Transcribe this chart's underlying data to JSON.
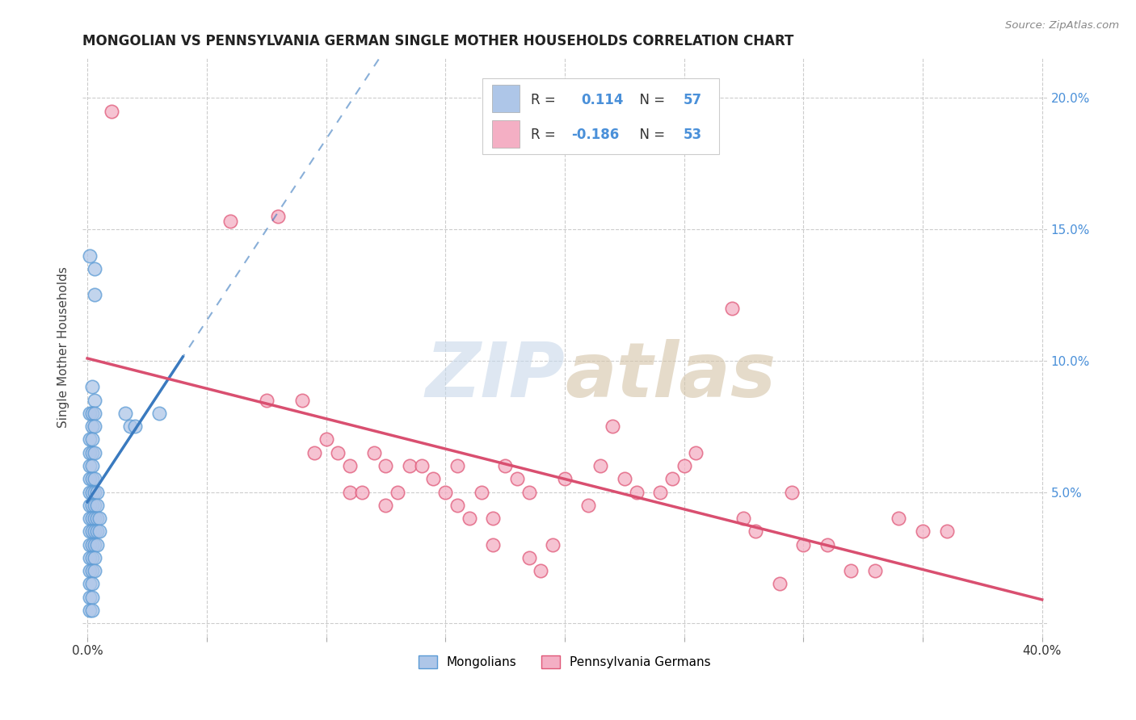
{
  "title": "MONGOLIAN VS PENNSYLVANIA GERMAN SINGLE MOTHER HOUSEHOLDS CORRELATION CHART",
  "source": "Source: ZipAtlas.com",
  "ylabel": "Single Mother Households",
  "xlim": [
    -0.002,
    0.402
  ],
  "ylim": [
    -0.005,
    0.215
  ],
  "xticks": [
    0.0,
    0.05,
    0.1,
    0.15,
    0.2,
    0.25,
    0.3,
    0.35,
    0.4
  ],
  "xticklabels": [
    "0.0%",
    "",
    "",
    "",
    "",
    "",
    "",
    "",
    "40.0%"
  ],
  "yticks": [
    0.0,
    0.05,
    0.1,
    0.15,
    0.2
  ],
  "mongolian_color": "#aec6e8",
  "mongolian_edge_color": "#5b9bd5",
  "pa_german_color": "#f4afc4",
  "pa_german_edge_color": "#e05878",
  "mongolian_line_color": "#3a7abf",
  "pa_german_line_color": "#d94f70",
  "background_color": "#ffffff",
  "grid_color": "#cccccc",
  "mongolian_r": 0.114,
  "pa_german_r": -0.186,
  "right_tick_color": "#4a90d9",
  "mongolian_scatter": [
    [
      0.001,
      0.14
    ],
    [
      0.003,
      0.135
    ],
    [
      0.003,
      0.125
    ],
    [
      0.002,
      0.09
    ],
    [
      0.003,
      0.085
    ],
    [
      0.001,
      0.08
    ],
    [
      0.002,
      0.08
    ],
    [
      0.003,
      0.08
    ],
    [
      0.002,
      0.075
    ],
    [
      0.003,
      0.075
    ],
    [
      0.001,
      0.07
    ],
    [
      0.002,
      0.07
    ],
    [
      0.001,
      0.065
    ],
    [
      0.002,
      0.065
    ],
    [
      0.003,
      0.065
    ],
    [
      0.001,
      0.06
    ],
    [
      0.002,
      0.06
    ],
    [
      0.001,
      0.055
    ],
    [
      0.002,
      0.055
    ],
    [
      0.003,
      0.055
    ],
    [
      0.001,
      0.05
    ],
    [
      0.002,
      0.05
    ],
    [
      0.003,
      0.05
    ],
    [
      0.004,
      0.05
    ],
    [
      0.001,
      0.045
    ],
    [
      0.002,
      0.045
    ],
    [
      0.003,
      0.045
    ],
    [
      0.004,
      0.045
    ],
    [
      0.001,
      0.04
    ],
    [
      0.002,
      0.04
    ],
    [
      0.003,
      0.04
    ],
    [
      0.004,
      0.04
    ],
    [
      0.005,
      0.04
    ],
    [
      0.001,
      0.035
    ],
    [
      0.002,
      0.035
    ],
    [
      0.003,
      0.035
    ],
    [
      0.004,
      0.035
    ],
    [
      0.005,
      0.035
    ],
    [
      0.001,
      0.03
    ],
    [
      0.002,
      0.03
    ],
    [
      0.003,
      0.03
    ],
    [
      0.004,
      0.03
    ],
    [
      0.001,
      0.025
    ],
    [
      0.002,
      0.025
    ],
    [
      0.003,
      0.025
    ],
    [
      0.001,
      0.02
    ],
    [
      0.002,
      0.02
    ],
    [
      0.003,
      0.02
    ],
    [
      0.001,
      0.015
    ],
    [
      0.002,
      0.015
    ],
    [
      0.001,
      0.01
    ],
    [
      0.002,
      0.01
    ],
    [
      0.001,
      0.005
    ],
    [
      0.002,
      0.005
    ],
    [
      0.016,
      0.08
    ],
    [
      0.018,
      0.075
    ],
    [
      0.02,
      0.075
    ],
    [
      0.03,
      0.08
    ]
  ],
  "pa_german_scatter": [
    [
      0.01,
      0.195
    ],
    [
      0.06,
      0.153
    ],
    [
      0.08,
      0.155
    ],
    [
      0.075,
      0.085
    ],
    [
      0.09,
      0.085
    ],
    [
      0.1,
      0.07
    ],
    [
      0.095,
      0.065
    ],
    [
      0.105,
      0.065
    ],
    [
      0.11,
      0.06
    ],
    [
      0.12,
      0.065
    ],
    [
      0.125,
      0.06
    ],
    [
      0.135,
      0.06
    ],
    [
      0.14,
      0.06
    ],
    [
      0.155,
      0.06
    ],
    [
      0.175,
      0.06
    ],
    [
      0.2,
      0.055
    ],
    [
      0.225,
      0.055
    ],
    [
      0.145,
      0.055
    ],
    [
      0.18,
      0.055
    ],
    [
      0.11,
      0.05
    ],
    [
      0.115,
      0.05
    ],
    [
      0.13,
      0.05
    ],
    [
      0.15,
      0.05
    ],
    [
      0.165,
      0.05
    ],
    [
      0.185,
      0.05
    ],
    [
      0.21,
      0.045
    ],
    [
      0.125,
      0.045
    ],
    [
      0.155,
      0.045
    ],
    [
      0.23,
      0.05
    ],
    [
      0.24,
      0.05
    ],
    [
      0.245,
      0.055
    ],
    [
      0.25,
      0.06
    ],
    [
      0.255,
      0.065
    ],
    [
      0.22,
      0.075
    ],
    [
      0.27,
      0.12
    ],
    [
      0.16,
      0.04
    ],
    [
      0.17,
      0.04
    ],
    [
      0.215,
      0.06
    ],
    [
      0.17,
      0.03
    ],
    [
      0.185,
      0.025
    ],
    [
      0.19,
      0.02
    ],
    [
      0.195,
      0.03
    ],
    [
      0.275,
      0.04
    ],
    [
      0.28,
      0.035
    ],
    [
      0.295,
      0.05
    ],
    [
      0.3,
      0.03
    ],
    [
      0.31,
      0.03
    ],
    [
      0.29,
      0.015
    ],
    [
      0.32,
      0.02
    ],
    [
      0.33,
      0.02
    ],
    [
      0.34,
      0.04
    ],
    [
      0.35,
      0.035
    ],
    [
      0.36,
      0.035
    ]
  ]
}
